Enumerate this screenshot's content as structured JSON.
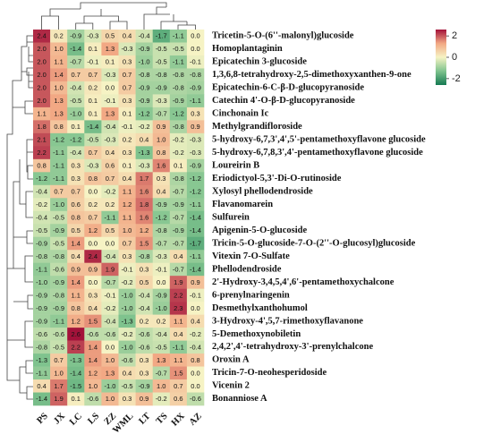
{
  "chart_data": {
    "type": "heatmap",
    "x": [
      "PS",
      "JX",
      "LC",
      "LS",
      "ZZ",
      "WML",
      "LT",
      "TS",
      "HX",
      "AZ"
    ],
    "y": [
      "Tricetin-5-O-(6''-malonyl)glucoside",
      "Homoplantaginin",
      "Epicatechin 3-glucoside",
      "1,3,6,8-tetrahydroxy-2,5-dimethoxyxanthen-9-one",
      "Epicatechin-6-C-β-D-glucopyranoside",
      "Catechin 4'-O-β-D-glucopyranoside",
      "Cinchonain Ic",
      "Methylgrandifloroside",
      "5-hydroxy-6,7,3',4',5'-pentamethoxyflavone glucoside",
      "5-hydroxy-6,7,8,3',4'-pentamethoxyflavone glucoside",
      "Loureirin B",
      "Eriodictyol-5,3'-Di-O-rutinoside",
      "Xylosyl phellodendroside",
      "Flavanomarein",
      "Sulfurein",
      "Apigenin-5-O-glucoside",
      "Tricin-5-O-glucoside-7-O-(2''-O-glucosyl)glucoside",
      "Vitexin 7-O-Sulfate",
      "Phellodendroside",
      "2'-Hydroxy-3,4,5,4',6'-pentamethoxychalcone",
      "6-prenylnaringenin",
      "Desmethylxanthohumol",
      "3-Hydroxy-4',5,7-rimethoxyflavanone",
      "5-Demethoxynobiletin",
      "2,4,2',4'-tetrahydroxy-3'-prenylchalcone",
      "Oroxin A",
      "Tricin-7-O-neohesperidoside",
      "Vicenin 2",
      "Bonanniose A"
    ],
    "values": [
      [
        2.4,
        0.2,
        -0.9,
        -0.3,
        0.5,
        0.4,
        -0.4,
        -1.7,
        -1.1,
        0
      ],
      [
        2,
        1,
        -1.4,
        0.1,
        1.3,
        -0.3,
        -0.9,
        -0.5,
        -0.5,
        0
      ],
      [
        2,
        1.1,
        -0.7,
        -0.1,
        0.1,
        0.3,
        -1,
        -0.5,
        -1.1,
        -0.1
      ],
      [
        2,
        1.4,
        0.7,
        0.7,
        -0.3,
        0.7,
        -0.8,
        -0.8,
        -0.8,
        -0.8
      ],
      [
        2,
        1,
        -0.4,
        0.2,
        0,
        0.7,
        -0.9,
        -0.9,
        -0.8,
        -0.9
      ],
      [
        2,
        1.3,
        -0.5,
        0.1,
        -0.1,
        0.3,
        -0.9,
        -0.3,
        -0.9,
        -1.1
      ],
      [
        1.1,
        1.3,
        -1,
        0.1,
        1.3,
        0.1,
        -1.2,
        -0.7,
        -1.2,
        0.3
      ],
      [
        1.8,
        0.8,
        0.1,
        -1.4,
        -0.4,
        -0.1,
        -0.2,
        0.9,
        -0.8,
        0.9
      ],
      [
        2.1,
        -1.2,
        -1.2,
        -0.5,
        -0.3,
        0.2,
        0.4,
        1,
        -0.2,
        -0.3
      ],
      [
        2.2,
        -1.1,
        -0.4,
        0.7,
        0.4,
        0.3,
        -1.3,
        0.8,
        -0.2,
        -0.3
      ],
      [
        0.8,
        -1.1,
        0.3,
        -0.3,
        0.6,
        0.1,
        -0.3,
        1.6,
        0.1,
        -0.9
      ],
      [
        -1.2,
        -1.1,
        0.3,
        0.8,
        0.7,
        0.4,
        1.7,
        0.3,
        -0.8,
        -1.2
      ],
      [
        -0.4,
        0.7,
        0.7,
        0,
        -0.2,
        1.1,
        1.6,
        0.4,
        -0.7,
        -1.2
      ],
      [
        -0.2,
        -1,
        0.6,
        0.2,
        0.2,
        1.2,
        1.8,
        -0.9,
        -0.9,
        -1.1
      ],
      [
        -0.4,
        -0.5,
        0.8,
        0.7,
        -1.1,
        1.1,
        1.6,
        -1.2,
        -0.7,
        -1.4
      ],
      [
        -0.5,
        -0.9,
        0.5,
        1.2,
        0.5,
        1,
        1.2,
        -0.8,
        -0.9,
        -1.4
      ],
      [
        -0.9,
        -0.5,
        1.4,
        0,
        0,
        0.7,
        1.5,
        -0.7,
        -0.7,
        -1.7
      ],
      [
        -0.8,
        -0.8,
        0.4,
        2.4,
        -0.4,
        0.3,
        -0.8,
        -0.3,
        0.4,
        -1.1
      ],
      [
        -1.1,
        -0.6,
        0.9,
        0.9,
        1.9,
        -0.1,
        0.3,
        -0.1,
        -0.7,
        -1.4
      ],
      [
        -1,
        -0.9,
        1.4,
        0,
        -0.7,
        -0.2,
        0.5,
        0,
        1.9,
        0.9
      ],
      [
        -0.9,
        -0.8,
        1.1,
        0.3,
        -0.1,
        -1,
        -0.4,
        -0.9,
        2.2,
        -0.1
      ],
      [
        -0.9,
        -0.9,
        0.8,
        0.4,
        -0.2,
        -1,
        -0.4,
        -1,
        2.3,
        0
      ],
      [
        -0.9,
        -1.1,
        1.2,
        1.5,
        -0.4,
        -1.3,
        0.2,
        0.2,
        1.1,
        0.4
      ],
      [
        -0.6,
        -0.6,
        2.6,
        -0.6,
        -0.6,
        -0.2,
        -0.6,
        -0.4,
        0.4,
        -0.2
      ],
      [
        -0.8,
        -0.5,
        2.2,
        1.4,
        0,
        -1,
        -0.6,
        -0.5,
        -1.1,
        -0.4
      ],
      [
        -1.3,
        0.7,
        -1.3,
        1.4,
        1,
        -0.6,
        0.3,
        1.3,
        1.1,
        0.8
      ],
      [
        -1.1,
        1,
        -1.4,
        1.2,
        1.3,
        0.4,
        0.3,
        -0.7,
        1.5,
        0
      ],
      [
        0.4,
        1.7,
        -1.5,
        1,
        -1,
        -0.5,
        -0.9,
        1,
        0.7,
        0
      ],
      [
        -1.4,
        1.9,
        0.1,
        -0.6,
        1,
        0.3,
        0.9,
        -0.2,
        0.6,
        -0.6
      ]
    ],
    "value_labels": [
      [
        "2.4",
        "0.2",
        "-0.9",
        "-0.3",
        "0.5",
        "0.4",
        "-0.4",
        "-1.7",
        "-1.1",
        "0.0"
      ],
      [
        "2.0",
        "1.0",
        "-1.4",
        "0.1",
        "1.3",
        "-0.3",
        "-0.9",
        "-0.5",
        "-0.5",
        "0.0"
      ],
      [
        "2.0",
        "1.1",
        "-0.7",
        "-0.1",
        "0.1",
        "0.3",
        "-1.0",
        "-0.5",
        "-1.1",
        "-0.1"
      ],
      [
        "2.0",
        "1.4",
        "0.7",
        "0.7",
        "-0.3",
        "0.7",
        "-0.8",
        "-0.8",
        "-0.8",
        "-0.8"
      ],
      [
        "2.0",
        "1.0",
        "-0.4",
        "0.2",
        "0.0",
        "0.7",
        "-0.9",
        "-0.9",
        "-0.8",
        "-0.9"
      ],
      [
        "2.0",
        "1.3",
        "-0.5",
        "0.1",
        "-0.1",
        "0.3",
        "-0.9",
        "-0.3",
        "-0.9",
        "-1.1"
      ],
      [
        "1.1",
        "1.3",
        "-1.0",
        "0.1",
        "1.3",
        "0.1",
        "-1.2",
        "-0.7",
        "-1.2",
        "0.3"
      ],
      [
        "1.8",
        "0.8",
        "0.1",
        "-1.4",
        "-0.4",
        "-0.1",
        "-0.2",
        "0.9",
        "-0.8",
        "0.9"
      ],
      [
        "2.1",
        "-1.2",
        "-1.2",
        "-0.5",
        "-0.3",
        "0.2",
        "0.4",
        "1.0",
        "-0.2",
        "-0.3"
      ],
      [
        "2.2",
        "-1.1",
        "-0.4",
        "0.7",
        "0.4",
        "0.3",
        "-1.3",
        "0.8",
        "-0.2",
        "-0.3"
      ],
      [
        "0.8",
        "-1.1",
        "0.3",
        "-0.3",
        "0.6",
        "0.1",
        "-0.3",
        "1.6",
        "0.1",
        "-0.9"
      ],
      [
        "-1.2",
        "-1.1",
        "0.3",
        "0.8",
        "0.7",
        "0.4",
        "1.7",
        "0.3",
        "-0.8",
        "-1.2"
      ],
      [
        "-0.4",
        "0.7",
        "0.7",
        "0.0",
        "-0.2",
        "1.1",
        "1.6",
        "0.4",
        "-0.7",
        "-1.2"
      ],
      [
        "-0.2",
        "-1.0",
        "0.6",
        "0.2",
        "0.2",
        "1.2",
        "1.8",
        "-0.9",
        "-0.9",
        "-1.1"
      ],
      [
        "-0.4",
        "-0.5",
        "0.8",
        "0.7",
        "-1.1",
        "1.1",
        "1.6",
        "-1.2",
        "-0.7",
        "-1.4"
      ],
      [
        "-0.5",
        "-0.9",
        "0.5",
        "1.2",
        "0.5",
        "1.0",
        "1.2",
        "-0.8",
        "-0.9",
        "-1.4"
      ],
      [
        "-0.9",
        "-0.5",
        "1.4",
        "0.0",
        "0.0",
        "0.7",
        "1.5",
        "-0.7",
        "-0.7",
        "-1.7"
      ],
      [
        "-0.8",
        "-0.8",
        "0.4",
        "2.4",
        "-0.4",
        "0.3",
        "-0.8",
        "-0.3",
        "0.4",
        "-1.1"
      ],
      [
        "-1.1",
        "-0.6",
        "0.9",
        "0.9",
        "1.9",
        "-0.1",
        "0.3",
        "-0.1",
        "-0.7",
        "-1.4"
      ],
      [
        "-1.0",
        "-0.9",
        "1.4",
        "0.0",
        "-0.7",
        "-0.2",
        "0.5",
        "0.0",
        "1.9",
        "0.9"
      ],
      [
        "-0.9",
        "-0.8",
        "1.1",
        "0.3",
        "-0.1",
        "-1.0",
        "-0.4",
        "-0.9",
        "2.2",
        "-0.1"
      ],
      [
        "-0.9",
        "-0.9",
        "0.8",
        "0.4",
        "-0.2",
        "-1.0",
        "-0.4",
        "-1.0",
        "2.3",
        "0.0"
      ],
      [
        "-0.9",
        "-1.1",
        "1.2",
        "1.5",
        "-0.4",
        "-1.3",
        "0.2",
        "0.2",
        "1.1",
        "0.4"
      ],
      [
        "-0.6",
        "-0.6",
        "2.6",
        "-0.6",
        "-0.6",
        "-0.2",
        "-0.6",
        "-0.4",
        "0.4",
        "-0.2"
      ],
      [
        "-0.8",
        "-0.5",
        "2.2",
        "1.4",
        "0.0",
        "-1.0",
        "-0.6",
        "-0.5",
        "-1.1",
        "-0.4"
      ],
      [
        "-1.3",
        "0.7",
        "-1.3",
        "1.4",
        "1.0",
        "-0.6",
        "0.3",
        "1.3",
        "1.1",
        "0.8"
      ],
      [
        "-1.1",
        "1.0",
        "-1.4",
        "1.2",
        "1.3",
        "0.4",
        "0.3",
        "-0.7",
        "1.5",
        "0.0"
      ],
      [
        "0.4",
        "1.7",
        "-1.5",
        "1.0",
        "-1.0",
        "-0.5",
        "-0.9",
        "1.0",
        "0.7",
        "0.0"
      ],
      [
        "-1.4",
        "1.9",
        "0.1",
        "-0.6",
        "1.0",
        "0.3",
        "0.9",
        "-0.2",
        "0.6",
        "-0.6"
      ]
    ],
    "colorscale": [
      "#157a52",
      "#7fc38e",
      "#f6f3c4",
      "#f2a884",
      "#a3123a"
    ],
    "clim": [
      -2.6,
      2.6
    ],
    "cticks": [
      2,
      0,
      -2
    ]
  }
}
